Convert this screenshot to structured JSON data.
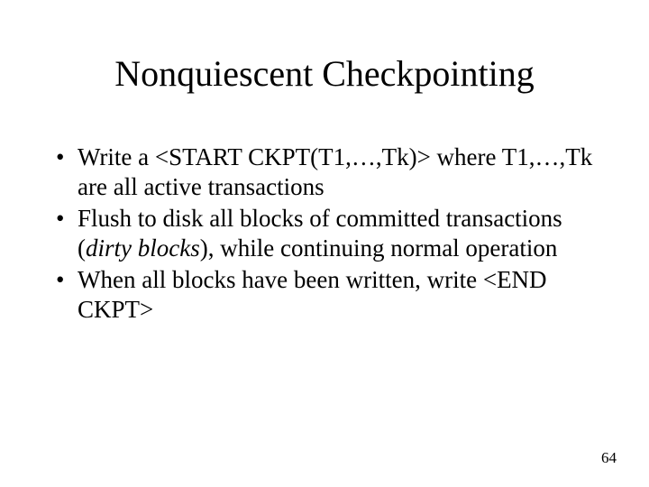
{
  "slide": {
    "title": "Nonquiescent Checkpointing",
    "bullets": [
      {
        "pre": "Write a <START CKPT(T1,…,Tk)> where T1,…,Tk are all active transactions",
        "italic": "",
        "post": ""
      },
      {
        "pre": "Flush to disk all blocks of committed transactions (",
        "italic": "dirty blocks",
        "post": "), while continuing normal operation"
      },
      {
        "pre": "When all blocks have been written, write <END CKPT>",
        "italic": "",
        "post": ""
      }
    ],
    "page_number": "64"
  },
  "style": {
    "background_color": "#ffffff",
    "text_color": "#000000",
    "title_fontsize": 40,
    "body_fontsize": 27,
    "pagenum_fontsize": 17,
    "font_family": "Times New Roman"
  }
}
